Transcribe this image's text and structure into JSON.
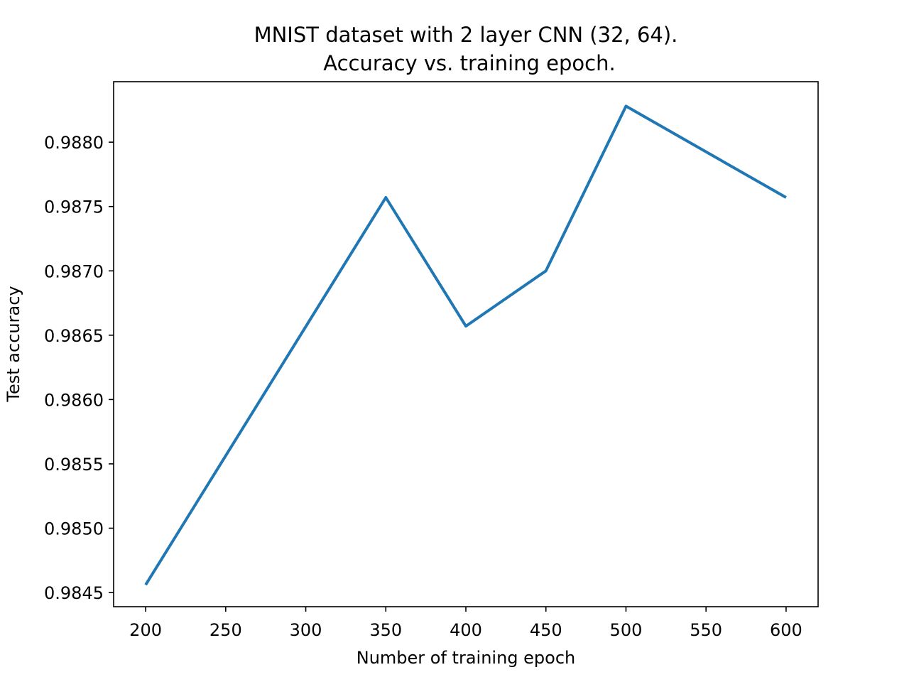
{
  "chart_data": {
    "type": "line",
    "title_lines": [
      "MNIST dataset with 2 layer CNN (32, 64).",
      "Accuracy vs. training epoch."
    ],
    "xlabel": "Number of training epoch",
    "ylabel": "Test accuracy",
    "x": [
      200,
      350,
      400,
      450,
      500,
      600
    ],
    "series": [
      {
        "values": [
          0.98456,
          0.98757,
          0.98657,
          0.987,
          0.98828,
          0.98757
        ],
        "color": "#1f77b4"
      }
    ],
    "xlim": [
      180,
      620
    ],
    "ylim": [
      0.98439,
      0.98847
    ],
    "xticks": [
      200,
      250,
      300,
      350,
      400,
      450,
      500,
      550,
      600
    ],
    "xtick_labels": [
      "200",
      "250",
      "300",
      "350",
      "400",
      "450",
      "500",
      "550",
      "600"
    ],
    "yticks": [
      0.9845,
      0.985,
      0.9855,
      0.986,
      0.9865,
      0.987,
      0.9875,
      0.988
    ],
    "ytick_labels": [
      "0.9845",
      "0.9850",
      "0.9855",
      "0.9860",
      "0.9865",
      "0.9870",
      "0.9875",
      "0.9880"
    ],
    "grid": false,
    "legend": "none"
  }
}
